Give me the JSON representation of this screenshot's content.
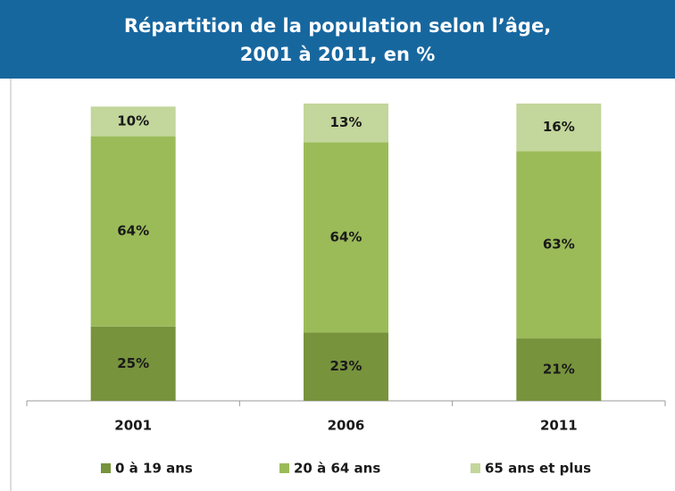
{
  "chart_data": {
    "type": "stacked_bar",
    "title": [
      "Répartition de la population selon l’âge,",
      "2001 à 2011, en %"
    ],
    "categories": [
      "2001",
      "2006",
      "2011"
    ],
    "series": [
      {
        "name": "0 à 19 ans",
        "color": "#77933c",
        "values": [
          25,
          23,
          21
        ],
        "value_labels": [
          "25%",
          "23%",
          "21%"
        ]
      },
      {
        "name": "20 à 64 ans",
        "color": "#9bbb59",
        "values": [
          64,
          64,
          63
        ],
        "value_labels": [
          "64%",
          "64%",
          "63%"
        ]
      },
      {
        "name": "65 ans et plus",
        "color": "#c3d69b",
        "values": [
          10,
          13,
          16
        ],
        "value_labels": [
          "10%",
          "13%",
          "16%"
        ]
      }
    ]
  }
}
